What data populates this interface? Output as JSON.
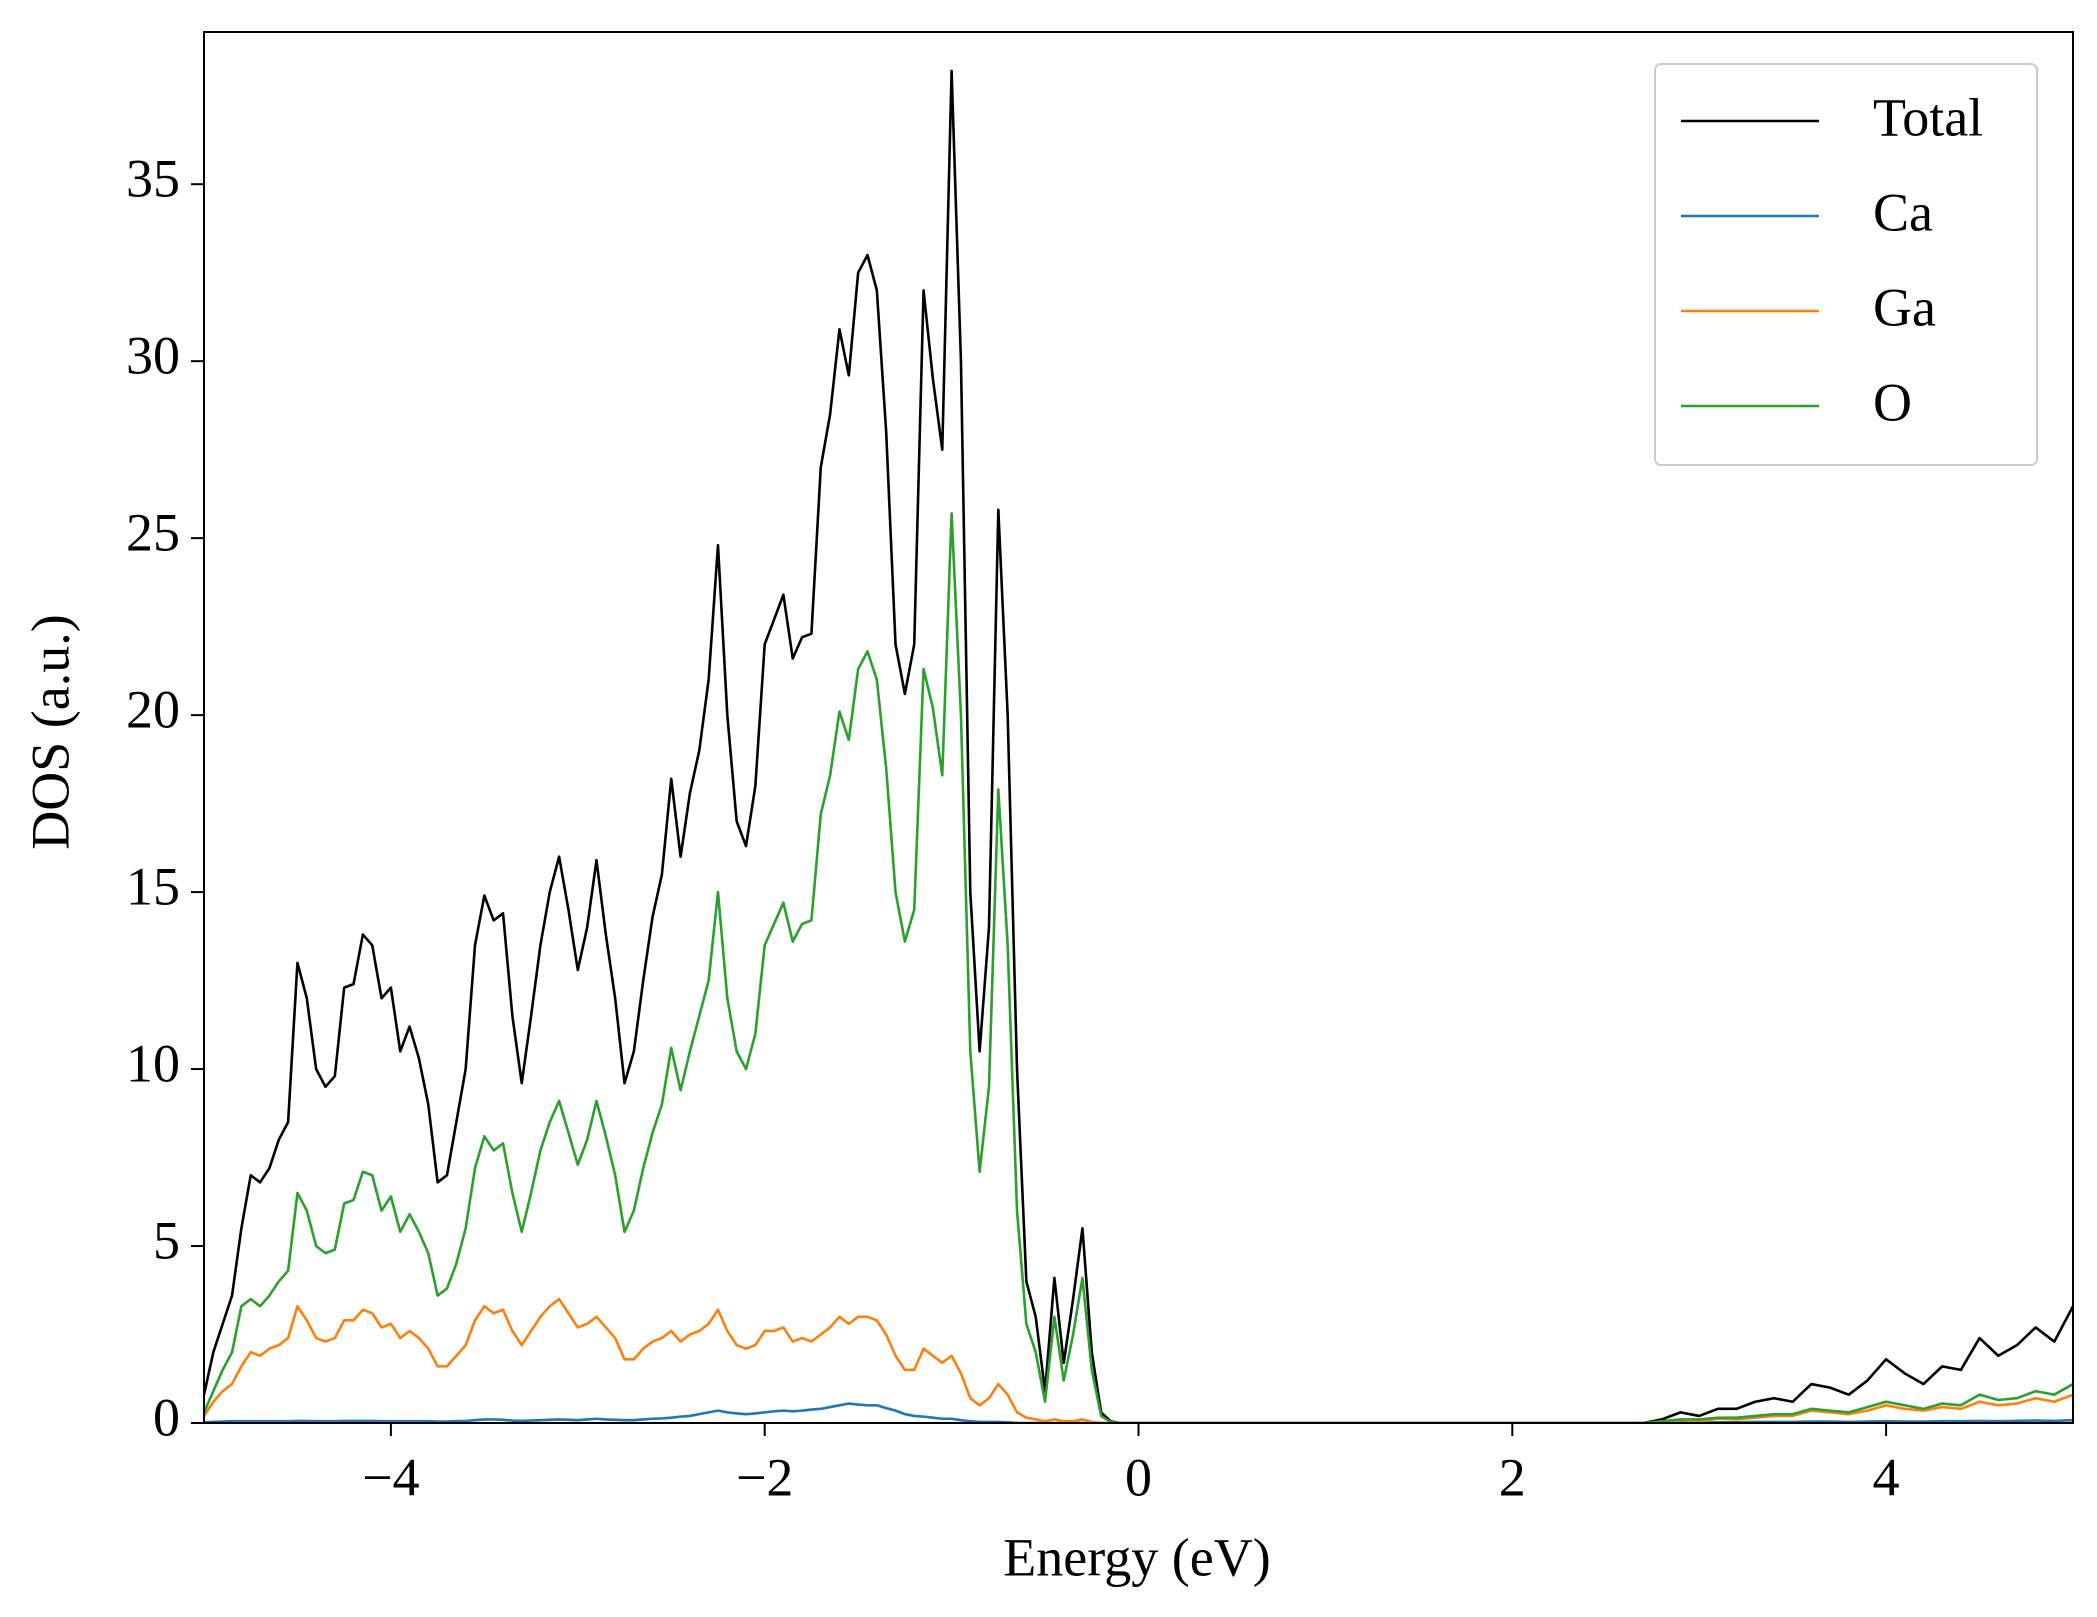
{
  "chart_data": {
    "type": "line",
    "xlabel": "Energy (eV)",
    "ylabel": "DOS (a.u.)",
    "x": [
      -5,
      -4.95,
      -4.9,
      -4.85,
      -4.8,
      -4.75,
      -4.7,
      -4.65,
      -4.6,
      -4.55,
      -4.5,
      -4.45,
      -4.4,
      -4.35,
      -4.3,
      -4.25,
      -4.2,
      -4.15,
      -4.1,
      -4.05,
      -4,
      -3.95,
      -3.9,
      -3.85,
      -3.8,
      -3.75,
      -3.7,
      -3.65,
      -3.6,
      -3.55,
      -3.5,
      -3.45,
      -3.4,
      -3.35,
      -3.3,
      -3.25,
      -3.2,
      -3.15,
      -3.1,
      -3.05,
      -3,
      -2.95,
      -2.9,
      -2.85,
      -2.8,
      -2.75,
      -2.7,
      -2.65,
      -2.6,
      -2.55,
      -2.5,
      -2.45,
      -2.4,
      -2.35,
      -2.3,
      -2.25,
      -2.2,
      -2.15,
      -2.1,
      -2.05,
      -2,
      -1.95,
      -1.9,
      -1.85,
      -1.8,
      -1.75,
      -1.7,
      -1.65,
      -1.6,
      -1.55,
      -1.5,
      -1.45,
      -1.4,
      -1.35,
      -1.3,
      -1.25,
      -1.2,
      -1.15,
      -1.1,
      -1.05,
      -1,
      -0.95,
      -0.9,
      -0.85,
      -0.8,
      -0.75,
      -0.7,
      -0.65,
      -0.6,
      -0.55,
      -0.5,
      -0.45,
      -0.4,
      -0.35,
      -0.3,
      -0.25,
      -0.2,
      -0.15,
      -0.1,
      0,
      0.5,
      1,
      1.5,
      2,
      2.5,
      2.7,
      2.8,
      2.9,
      3,
      3.1,
      3.2,
      3.3,
      3.4,
      3.5,
      3.6,
      3.7,
      3.8,
      3.9,
      4,
      4.1,
      4.2,
      4.3,
      4.4,
      4.5,
      4.6,
      4.7,
      4.8,
      4.9,
      5
    ],
    "series": [
      {
        "name": "Total",
        "color": "#000000",
        "values": [
          0.8,
          2,
          2.8,
          3.6,
          5.5,
          7,
          6.8,
          7.2,
          8,
          8.5,
          13,
          12,
          10,
          9.5,
          9.8,
          12.3,
          12.4,
          13.8,
          13.5,
          12,
          12.3,
          10.5,
          11.2,
          10.3,
          9,
          6.8,
          7,
          8.5,
          10,
          13.5,
          14.9,
          14.2,
          14.4,
          11.5,
          9.6,
          11.5,
          13.5,
          15,
          16,
          14.5,
          12.8,
          14,
          15.9,
          13.8,
          12,
          9.6,
          10.5,
          12.5,
          14.3,
          15.5,
          18.2,
          16,
          17.8,
          19,
          21,
          24.8,
          20,
          17,
          16.3,
          18,
          22,
          22.7,
          23.4,
          21.6,
          22.2,
          22.3,
          27,
          28.5,
          30.9,
          29.6,
          32.5,
          33,
          32,
          28,
          22,
          20.6,
          22,
          32,
          29.5,
          27.5,
          38.2,
          30,
          15,
          10.5,
          14,
          25.8,
          20,
          10,
          4,
          3,
          0.9,
          4.1,
          1.7,
          3.5,
          5.5,
          2,
          0.3,
          0.05,
          0,
          0,
          0,
          0,
          0,
          0,
          0,
          0,
          0.1,
          0.3,
          0.2,
          0.4,
          0.4,
          0.6,
          0.7,
          0.6,
          1.1,
          1,
          0.8,
          1.2,
          1.8,
          1.4,
          1.1,
          1.6,
          1.5,
          2.4,
          1.9,
          2.2,
          2.7,
          2.3,
          3.3
        ]
      },
      {
        "name": "Ca",
        "color": "#1f77b4",
        "values": [
          0.02,
          0.03,
          0.04,
          0.05,
          0.05,
          0.05,
          0.05,
          0.05,
          0.05,
          0.05,
          0.06,
          0.06,
          0.05,
          0.05,
          0.05,
          0.06,
          0.06,
          0.06,
          0.06,
          0.05,
          0.05,
          0.05,
          0.05,
          0.05,
          0.05,
          0.04,
          0.04,
          0.05,
          0.06,
          0.08,
          0.1,
          0.1,
          0.09,
          0.07,
          0.06,
          0.07,
          0.08,
          0.09,
          0.1,
          0.09,
          0.08,
          0.1,
          0.12,
          0.1,
          0.09,
          0.08,
          0.08,
          0.1,
          0.12,
          0.13,
          0.15,
          0.18,
          0.2,
          0.25,
          0.3,
          0.35,
          0.3,
          0.27,
          0.25,
          0.27,
          0.3,
          0.33,
          0.35,
          0.33,
          0.35,
          0.38,
          0.4,
          0.45,
          0.5,
          0.55,
          0.52,
          0.5,
          0.5,
          0.42,
          0.35,
          0.25,
          0.2,
          0.18,
          0.15,
          0.12,
          0.12,
          0.08,
          0.05,
          0.03,
          0.03,
          0.03,
          0.02,
          0,
          0,
          0,
          0,
          0,
          0,
          0,
          0,
          0,
          0,
          0,
          0,
          0,
          0,
          0,
          0,
          0,
          0,
          0,
          0.01,
          0.02,
          0.01,
          0.02,
          0.02,
          0.03,
          0.03,
          0.03,
          0.04,
          0.04,
          0.03,
          0.04,
          0.05,
          0.04,
          0.04,
          0.05,
          0.05,
          0.06,
          0.05,
          0.06,
          0.07,
          0.06,
          0.08
        ]
      },
      {
        "name": "Ga",
        "color": "#ff7f0e",
        "values": [
          0.2,
          0.6,
          0.9,
          1.1,
          1.6,
          2,
          1.9,
          2.1,
          2.2,
          2.4,
          3.3,
          2.9,
          2.4,
          2.3,
          2.4,
          2.9,
          2.9,
          3.2,
          3.1,
          2.7,
          2.8,
          2.4,
          2.6,
          2.4,
          2.1,
          1.6,
          1.6,
          1.9,
          2.2,
          2.9,
          3.3,
          3.1,
          3.2,
          2.6,
          2.2,
          2.6,
          3,
          3.3,
          3.5,
          3.1,
          2.7,
          2.8,
          3,
          2.7,
          2.4,
          1.8,
          1.8,
          2.1,
          2.3,
          2.4,
          2.6,
          2.3,
          2.5,
          2.6,
          2.8,
          3.2,
          2.6,
          2.2,
          2.1,
          2.2,
          2.6,
          2.6,
          2.7,
          2.3,
          2.4,
          2.3,
          2.5,
          2.7,
          3,
          2.8,
          3,
          3,
          2.9,
          2.5,
          1.9,
          1.5,
          1.5,
          2.1,
          1.9,
          1.7,
          1.9,
          1.4,
          0.7,
          0.5,
          0.7,
          1.1,
          0.8,
          0.3,
          0.15,
          0.1,
          0.05,
          0.1,
          0.05,
          0.05,
          0.1,
          0.03,
          0,
          0,
          0,
          0,
          0,
          0,
          0,
          0,
          0,
          0,
          0.03,
          0.08,
          0.05,
          0.12,
          0.1,
          0.15,
          0.2,
          0.2,
          0.35,
          0.3,
          0.25,
          0.35,
          0.5,
          0.4,
          0.35,
          0.45,
          0.4,
          0.6,
          0.5,
          0.55,
          0.7,
          0.6,
          0.8
        ]
      },
      {
        "name": "O",
        "color": "#2ca02c",
        "values": [
          0.3,
          0.9,
          1.5,
          2,
          3.3,
          3.5,
          3.3,
          3.6,
          4,
          4.3,
          6.5,
          6,
          5,
          4.8,
          4.9,
          6.2,
          6.3,
          7.1,
          7,
          6,
          6.4,
          5.4,
          5.9,
          5.4,
          4.8,
          3.6,
          3.8,
          4.5,
          5.5,
          7.2,
          8.1,
          7.7,
          7.9,
          6.5,
          5.4,
          6.5,
          7.7,
          8.5,
          9.1,
          8.2,
          7.3,
          8,
          9.1,
          8.1,
          7,
          5.4,
          6,
          7.2,
          8.2,
          9,
          10.6,
          9.4,
          10.5,
          11.5,
          12.5,
          15,
          12,
          10.5,
          10,
          11,
          13.5,
          14.1,
          14.7,
          13.6,
          14.1,
          14.2,
          17.2,
          18.3,
          20.1,
          19.3,
          21.3,
          21.8,
          21,
          18.5,
          15,
          13.6,
          14.5,
          21.3,
          20.2,
          18.3,
          25.7,
          20,
          10.5,
          7.1,
          9.5,
          17.9,
          13.5,
          6,
          2.8,
          2,
          0.6,
          3,
          1.2,
          2.5,
          4.1,
          1.5,
          0.2,
          0.03,
          0,
          0,
          0,
          0,
          0,
          0,
          0,
          0,
          0.05,
          0.1,
          0.1,
          0.15,
          0.15,
          0.2,
          0.25,
          0.25,
          0.4,
          0.35,
          0.3,
          0.45,
          0.6,
          0.5,
          0.4,
          0.55,
          0.5,
          0.8,
          0.65,
          0.7,
          0.9,
          0.8,
          1.1
        ]
      }
    ],
    "xlim": [
      -5,
      5
    ],
    "ylim": [
      0,
      39.3
    ],
    "xticks": [
      {
        "value": -4,
        "label": "−4"
      },
      {
        "value": -2,
        "label": "−2"
      },
      0,
      2,
      4
    ],
    "yticks": [
      0,
      5,
      10,
      15,
      20,
      25,
      30,
      35
    ],
    "legend": "upper right",
    "grid": false
  }
}
